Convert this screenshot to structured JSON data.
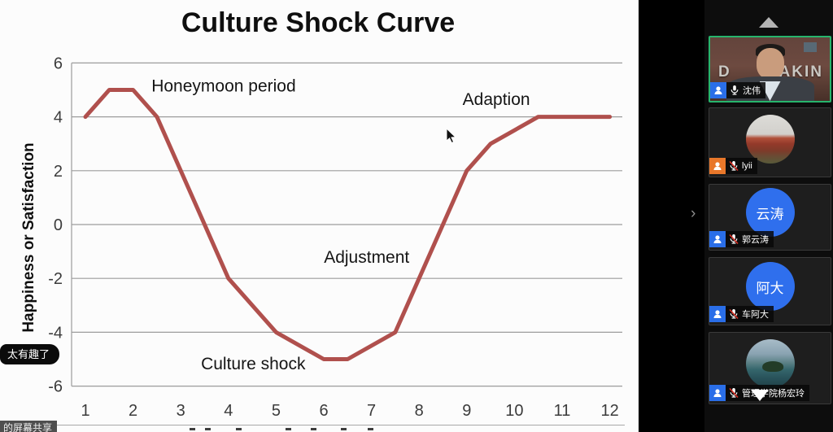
{
  "chart_data": {
    "type": "line",
    "title": "Culture Shock Curve",
    "ylabel": "Happiness or Satisfaction",
    "xlabel": "",
    "x_ticks": [
      1,
      2,
      3,
      4,
      5,
      6,
      7,
      8,
      9,
      10,
      11,
      12
    ],
    "y_ticks": [
      6,
      4,
      2,
      0,
      -2,
      -4,
      -6
    ],
    "xlim": [
      1,
      12
    ],
    "ylim": [
      -6,
      6
    ],
    "grid": true,
    "line_color": "#b0504d",
    "series": [
      {
        "name": "culture shock curve",
        "points": [
          [
            1,
            4
          ],
          [
            1.5,
            5
          ],
          [
            2,
            5
          ],
          [
            2.5,
            4
          ],
          [
            4,
            -2
          ],
          [
            5,
            -4
          ],
          [
            6,
            -5
          ],
          [
            6.5,
            -5
          ],
          [
            7.5,
            -4
          ],
          [
            9,
            2
          ],
          [
            9.5,
            3
          ],
          [
            10.5,
            4
          ],
          [
            12,
            4
          ]
        ]
      }
    ],
    "annotations": [
      {
        "label": "Honeymoon period",
        "x": 3.9,
        "y": 5.15
      },
      {
        "label": "Adaption",
        "x": 9.62,
        "y": 4.65
      },
      {
        "label": "Adjustment",
        "x": 6.9,
        "y": -1.21
      },
      {
        "label": "Culture shock",
        "x": 4.52,
        "y": -5.17
      }
    ]
  },
  "overlays": {
    "chat_bubble": "太有趣了",
    "share_banner": "的屏幕共享"
  },
  "sidebar": {
    "collapse_glyph": "›",
    "participants": [
      {
        "name": "沈伟",
        "muted": false,
        "icon_color": "#2a6ee8",
        "active": true,
        "sign_left": "D",
        "sign_right": "AKIN"
      },
      {
        "name": "lyii",
        "muted": true,
        "icon_color": "#e8772a"
      },
      {
        "name": "郭云涛",
        "muted": true,
        "icon_color": "#2a6ee8",
        "avatar_text": "云涛",
        "avatar_color": "#2f6fed"
      },
      {
        "name": "车阿大",
        "muted": true,
        "icon_color": "#2a6ee8",
        "avatar_text": "阿大",
        "avatar_color": "#2f6fed"
      },
      {
        "name": "管理学院杨宏玲",
        "muted": true,
        "icon_color": "#2a6ee8"
      }
    ]
  }
}
